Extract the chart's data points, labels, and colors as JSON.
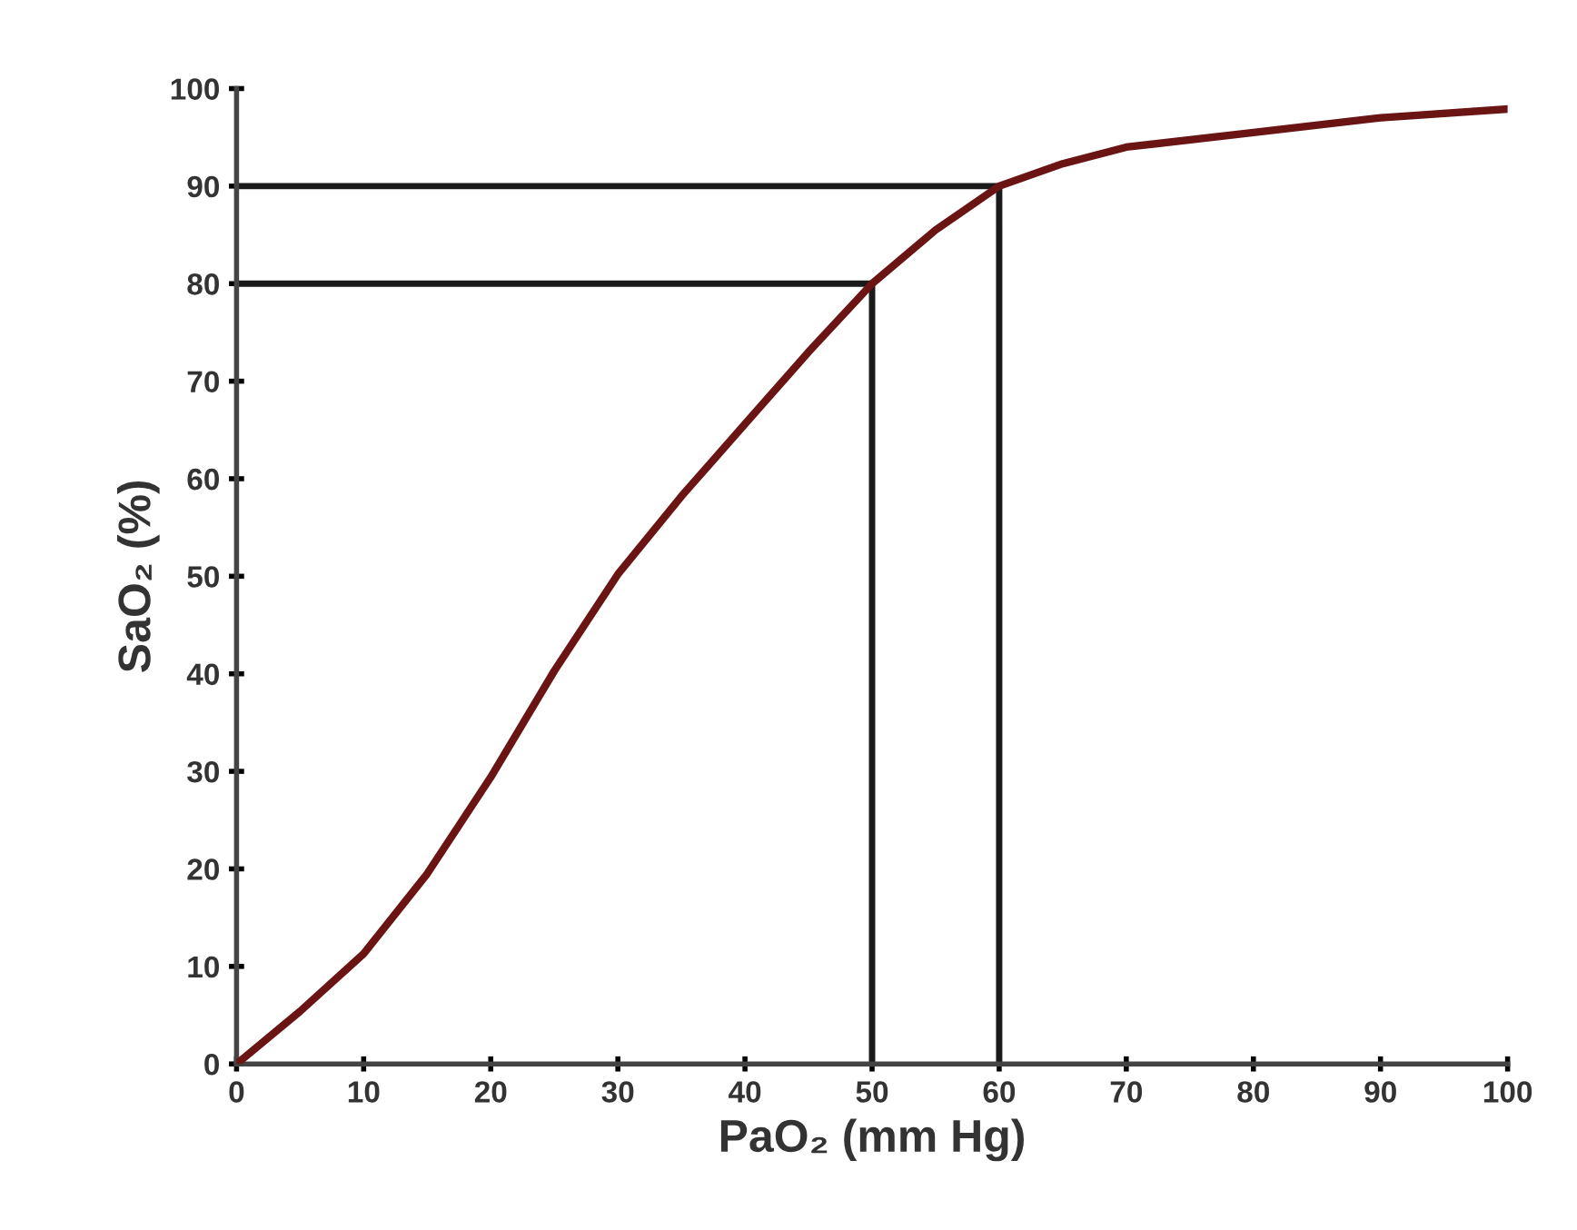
{
  "chart_data": {
    "type": "line",
    "xlabel": "PaO₂ (mm Hg)",
    "ylabel": "SaO₂ (%)",
    "xlim": [
      0,
      100
    ],
    "xticks": [
      0,
      10,
      20,
      30,
      40,
      50,
      60,
      70,
      80,
      90,
      100
    ],
    "ylim": [
      0,
      100
    ],
    "yticks": [
      0,
      10,
      20,
      30,
      40,
      50,
      60,
      70,
      80,
      90,
      100
    ],
    "grid": false,
    "legend": false,
    "marker": "none",
    "line_style": "solid",
    "series": [
      {
        "color": "#6a1414",
        "x": [
          0,
          5,
          10,
          15,
          20,
          25,
          30,
          35,
          40,
          45,
          50,
          55,
          60,
          65,
          70,
          80,
          90,
          100
        ],
        "values": [
          0,
          5.4,
          11.3,
          19.5,
          29.4,
          40.3,
          50.2,
          58.2,
          65.6,
          73,
          80,
          85.5,
          90,
          92.3,
          94,
          95.5,
          97,
          97.9
        ]
      },
      {
        "color": "#1a1a1a",
        "x": [
          0,
          50,
          50
        ],
        "values": [
          80,
          80,
          0
        ]
      },
      {
        "color": "#1a1a1a",
        "x": [
          0,
          60,
          60
        ],
        "values": [
          90,
          90,
          0
        ]
      }
    ]
  }
}
